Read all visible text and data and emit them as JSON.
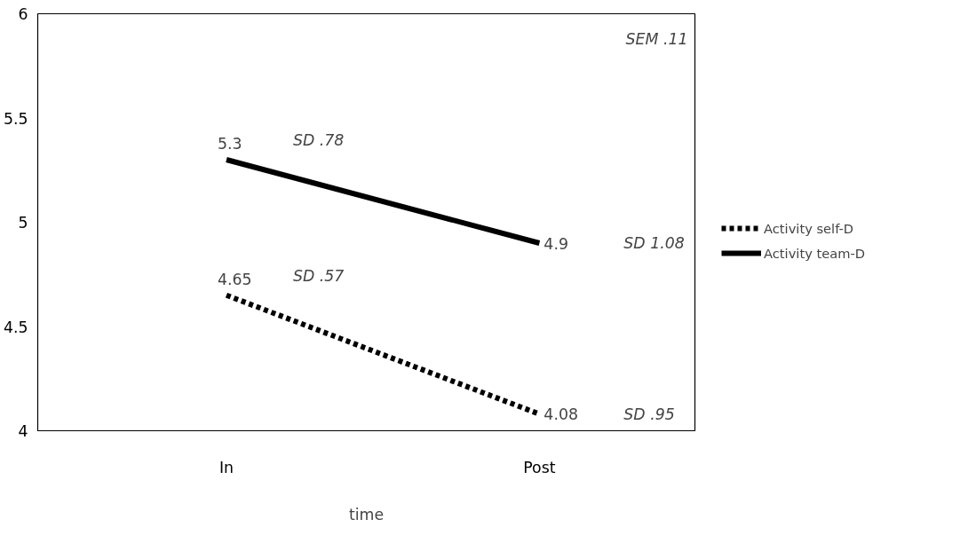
{
  "chart_data": {
    "type": "line",
    "xlabel": "time",
    "categories": [
      "In",
      "Post"
    ],
    "series": [
      {
        "name": "Activity self-D",
        "color": "#000000",
        "values": [
          4.65,
          4.08
        ],
        "line_style": "dotted"
      },
      {
        "name": "Activity team-D",
        "color": "#000000",
        "values": [
          5.3,
          4.9
        ],
        "line_style": "solid"
      }
    ],
    "ylim": [
      4,
      6
    ],
    "yticks": [
      4,
      4.5,
      5,
      5.5,
      6
    ],
    "grid": false,
    "legend": "right",
    "data_labels": true,
    "marker": "none",
    "annotations": [
      "SD .57",
      "SD .95",
      "SD .78",
      "SD 1.08",
      "SEM .11"
    ]
  }
}
